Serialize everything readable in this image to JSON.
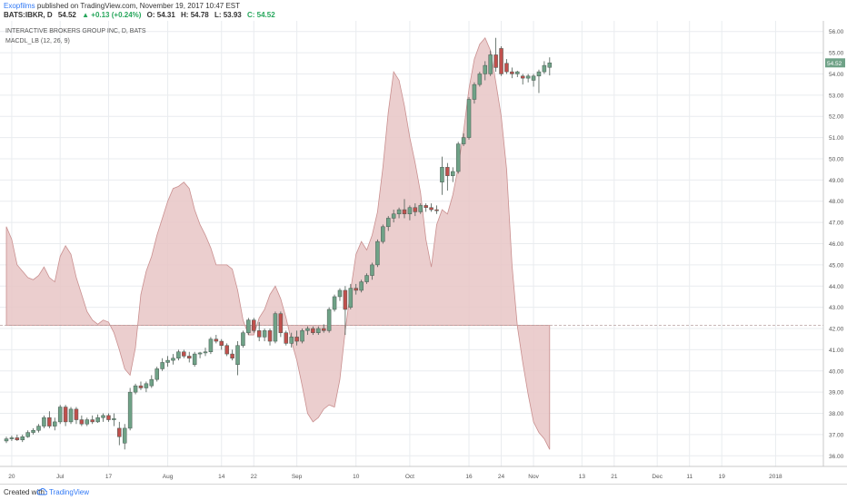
{
  "header": {
    "publisher": "Exopfilms",
    "published_text": "published on TradingView.com, November 19, 2017 10:47 EST",
    "symbol_line": "BATS:IBKR, D",
    "price": "54.52",
    "change": "▲ +0.13 (+0.24%)",
    "open": "O: 54.31",
    "high": "H: 54.78",
    "low": "L: 53.93",
    "close": "C: 54.52"
  },
  "footer": {
    "created_with": "Created with",
    "brand": "TradingView"
  },
  "colors": {
    "up": "#6fa287",
    "down": "#c0504d",
    "macd_fill": "#e7c6c6",
    "macd_line": "#c98f8f",
    "grid": "#e9ecef",
    "price_label_bg": "#6fa287"
  },
  "chart_data": {
    "type": "candlestick",
    "title": "INTERACTIVE BROKERS GROUP INC, D, BATS",
    "indicator_label": "MACDL_LB (12, 26, 9)",
    "last_price_label": "54.52",
    "ylim": [
      35.5,
      56.5
    ],
    "y_ticks": [
      "36.00",
      "37.00",
      "38.00",
      "39.00",
      "40.00",
      "41.00",
      "42.00",
      "43.00",
      "44.00",
      "45.00",
      "46.00",
      "47.00",
      "48.00",
      "49.00",
      "50.00",
      "51.00",
      "52.00",
      "53.00",
      "54.00",
      "55.00",
      "56.00"
    ],
    "x_ticks": [
      {
        "label": "20",
        "t": 1
      },
      {
        "label": "Jul",
        "t": 10
      },
      {
        "label": "17",
        "t": 19
      },
      {
        "label": "Aug",
        "t": 30
      },
      {
        "label": "14",
        "t": 40
      },
      {
        "label": "22",
        "t": 46
      },
      {
        "label": "Sep",
        "t": 54
      },
      {
        "label": "10",
        "t": 65
      },
      {
        "label": "Oct",
        "t": 75
      },
      {
        "label": "16",
        "t": 86
      },
      {
        "label": "24",
        "t": 92
      },
      {
        "label": "Nov",
        "t": 98
      },
      {
        "label": "13",
        "t": 107
      },
      {
        "label": "21",
        "t": 113
      },
      {
        "label": "Dec",
        "t": 121
      },
      {
        "label": "11",
        "t": 127
      },
      {
        "label": "19",
        "t": 133
      },
      {
        "label": "2018",
        "t": 143
      }
    ],
    "t_range": [
      0,
      148
    ],
    "candles": [
      {
        "t": 0,
        "o": 36.7,
        "h": 36.9,
        "l": 36.6,
        "c": 36.8
      },
      {
        "t": 1,
        "o": 36.8,
        "h": 36.95,
        "l": 36.7,
        "c": 36.85
      },
      {
        "t": 2,
        "o": 36.85,
        "h": 37.0,
        "l": 36.7,
        "c": 36.75
      },
      {
        "t": 3,
        "o": 36.75,
        "h": 37.0,
        "l": 36.65,
        "c": 36.9
      },
      {
        "t": 4,
        "o": 36.9,
        "h": 37.2,
        "l": 36.85,
        "c": 37.1
      },
      {
        "t": 5,
        "o": 37.1,
        "h": 37.3,
        "l": 37.0,
        "c": 37.2
      },
      {
        "t": 6,
        "o": 37.2,
        "h": 37.5,
        "l": 37.1,
        "c": 37.4
      },
      {
        "t": 7,
        "o": 37.4,
        "h": 37.9,
        "l": 37.3,
        "c": 37.8
      },
      {
        "t": 8,
        "o": 37.8,
        "h": 38.1,
        "l": 37.3,
        "c": 37.4
      },
      {
        "t": 9,
        "o": 37.4,
        "h": 37.8,
        "l": 37.2,
        "c": 37.6
      },
      {
        "t": 10,
        "o": 37.6,
        "h": 38.4,
        "l": 37.5,
        "c": 38.3
      },
      {
        "t": 11,
        "o": 38.3,
        "h": 38.4,
        "l": 37.4,
        "c": 37.6
      },
      {
        "t": 12,
        "o": 37.6,
        "h": 38.3,
        "l": 37.5,
        "c": 38.2
      },
      {
        "t": 13,
        "o": 38.2,
        "h": 38.3,
        "l": 37.5,
        "c": 37.7
      },
      {
        "t": 14,
        "o": 37.7,
        "h": 37.9,
        "l": 37.4,
        "c": 37.5
      },
      {
        "t": 15,
        "o": 37.5,
        "h": 37.8,
        "l": 37.4,
        "c": 37.7
      },
      {
        "t": 16,
        "o": 37.7,
        "h": 37.9,
        "l": 37.5,
        "c": 37.6
      },
      {
        "t": 17,
        "o": 37.6,
        "h": 37.95,
        "l": 37.55,
        "c": 37.8
      },
      {
        "t": 18,
        "o": 37.8,
        "h": 38.0,
        "l": 37.6,
        "c": 37.9
      },
      {
        "t": 19,
        "o": 37.9,
        "h": 38.0,
        "l": 37.6,
        "c": 37.7
      },
      {
        "t": 20,
        "o": 37.7,
        "h": 38.0,
        "l": 37.4,
        "c": 37.75
      },
      {
        "t": 21,
        "o": 37.3,
        "h": 37.6,
        "l": 36.5,
        "c": 36.9
      },
      {
        "t": 22,
        "o": 36.6,
        "h": 37.5,
        "l": 36.3,
        "c": 37.3
      },
      {
        "t": 23,
        "o": 37.3,
        "h": 39.2,
        "l": 37.2,
        "c": 39.0
      },
      {
        "t": 24,
        "o": 39.0,
        "h": 39.4,
        "l": 38.9,
        "c": 39.3
      },
      {
        "t": 25,
        "o": 39.3,
        "h": 39.5,
        "l": 39.1,
        "c": 39.2
      },
      {
        "t": 26,
        "o": 39.2,
        "h": 39.5,
        "l": 39.0,
        "c": 39.4
      },
      {
        "t": 27,
        "o": 39.3,
        "h": 39.8,
        "l": 39.2,
        "c": 39.6
      },
      {
        "t": 28,
        "o": 39.6,
        "h": 40.2,
        "l": 39.5,
        "c": 40.1
      },
      {
        "t": 29,
        "o": 40.1,
        "h": 40.6,
        "l": 40.0,
        "c": 40.4
      },
      {
        "t": 30,
        "o": 40.4,
        "h": 40.7,
        "l": 40.2,
        "c": 40.5
      },
      {
        "t": 31,
        "o": 40.5,
        "h": 40.8,
        "l": 40.3,
        "c": 40.6
      },
      {
        "t": 32,
        "o": 40.6,
        "h": 41.0,
        "l": 40.5,
        "c": 40.9
      },
      {
        "t": 33,
        "o": 40.9,
        "h": 41.0,
        "l": 40.6,
        "c": 40.7
      },
      {
        "t": 34,
        "o": 40.7,
        "h": 40.9,
        "l": 40.4,
        "c": 40.6
      },
      {
        "t": 35,
        "o": 40.3,
        "h": 40.9,
        "l": 40.2,
        "c": 40.8
      },
      {
        "t": 36,
        "o": 40.8,
        "h": 40.9,
        "l": 40.6,
        "c": 40.85
      },
      {
        "t": 37,
        "o": 40.85,
        "h": 41.1,
        "l": 40.7,
        "c": 40.9
      },
      {
        "t": 38,
        "o": 40.9,
        "h": 41.6,
        "l": 40.8,
        "c": 41.5
      },
      {
        "t": 39,
        "o": 41.5,
        "h": 41.7,
        "l": 41.3,
        "c": 41.4
      },
      {
        "t": 40,
        "o": 41.4,
        "h": 41.5,
        "l": 41.0,
        "c": 41.2
      },
      {
        "t": 41,
        "o": 41.2,
        "h": 41.3,
        "l": 40.7,
        "c": 40.8
      },
      {
        "t": 42,
        "o": 40.8,
        "h": 41.0,
        "l": 40.5,
        "c": 40.6
      },
      {
        "t": 43,
        "o": 40.3,
        "h": 41.4,
        "l": 39.8,
        "c": 41.2
      },
      {
        "t": 44,
        "o": 41.2,
        "h": 41.9,
        "l": 41.1,
        "c": 41.8
      },
      {
        "t": 45,
        "o": 41.8,
        "h": 42.5,
        "l": 41.7,
        "c": 42.4
      },
      {
        "t": 46,
        "o": 42.4,
        "h": 42.5,
        "l": 41.8,
        "c": 41.9
      },
      {
        "t": 47,
        "o": 41.9,
        "h": 42.3,
        "l": 41.4,
        "c": 41.6
      },
      {
        "t": 48,
        "o": 41.6,
        "h": 42.0,
        "l": 41.4,
        "c": 41.9
      },
      {
        "t": 49,
        "o": 41.9,
        "h": 42.0,
        "l": 41.2,
        "c": 41.4
      },
      {
        "t": 50,
        "o": 41.4,
        "h": 42.8,
        "l": 41.3,
        "c": 42.7
      },
      {
        "t": 51,
        "o": 42.7,
        "h": 42.8,
        "l": 41.6,
        "c": 41.8
      },
      {
        "t": 52,
        "o": 41.8,
        "h": 41.9,
        "l": 41.2,
        "c": 41.3
      },
      {
        "t": 53,
        "o": 41.3,
        "h": 41.8,
        "l": 41.1,
        "c": 41.6
      },
      {
        "t": 54,
        "o": 41.6,
        "h": 41.9,
        "l": 41.2,
        "c": 41.4
      },
      {
        "t": 55,
        "o": 41.4,
        "h": 42.0,
        "l": 41.3,
        "c": 41.9
      },
      {
        "t": 56,
        "o": 41.9,
        "h": 42.1,
        "l": 41.7,
        "c": 42.0
      },
      {
        "t": 57,
        "o": 42.0,
        "h": 42.1,
        "l": 41.7,
        "c": 41.8
      },
      {
        "t": 58,
        "o": 41.8,
        "h": 42.1,
        "l": 41.7,
        "c": 42.0
      },
      {
        "t": 59,
        "o": 42.0,
        "h": 42.2,
        "l": 41.8,
        "c": 41.9
      },
      {
        "t": 60,
        "o": 41.9,
        "h": 43.0,
        "l": 41.8,
        "c": 42.9
      },
      {
        "t": 61,
        "o": 42.9,
        "h": 43.6,
        "l": 42.8,
        "c": 43.5
      },
      {
        "t": 62,
        "o": 43.5,
        "h": 43.9,
        "l": 43.3,
        "c": 43.8
      },
      {
        "t": 63,
        "o": 43.8,
        "h": 44.0,
        "l": 41.7,
        "c": 42.9
      },
      {
        "t": 64,
        "o": 43.0,
        "h": 44.1,
        "l": 42.9,
        "c": 43.9
      },
      {
        "t": 65,
        "o": 43.9,
        "h": 44.1,
        "l": 43.6,
        "c": 43.8
      },
      {
        "t": 66,
        "o": 43.8,
        "h": 44.3,
        "l": 43.7,
        "c": 44.2
      },
      {
        "t": 67,
        "o": 44.2,
        "h": 44.6,
        "l": 44.1,
        "c": 44.5
      },
      {
        "t": 68,
        "o": 44.5,
        "h": 45.1,
        "l": 44.3,
        "c": 45.0
      },
      {
        "t": 69,
        "o": 45.0,
        "h": 46.2,
        "l": 44.9,
        "c": 46.1
      },
      {
        "t": 70,
        "o": 46.1,
        "h": 46.9,
        "l": 46.0,
        "c": 46.8
      },
      {
        "t": 71,
        "o": 46.8,
        "h": 47.3,
        "l": 46.6,
        "c": 47.2
      },
      {
        "t": 72,
        "o": 47.2,
        "h": 47.6,
        "l": 47.0,
        "c": 47.4
      },
      {
        "t": 73,
        "o": 47.4,
        "h": 47.7,
        "l": 47.2,
        "c": 47.6
      },
      {
        "t": 74,
        "o": 47.6,
        "h": 48.1,
        "l": 47.2,
        "c": 47.4
      },
      {
        "t": 75,
        "o": 47.4,
        "h": 47.8,
        "l": 47.1,
        "c": 47.7
      },
      {
        "t": 76,
        "o": 47.7,
        "h": 47.9,
        "l": 47.3,
        "c": 47.5
      },
      {
        "t": 77,
        "o": 47.5,
        "h": 47.9,
        "l": 47.4,
        "c": 47.8
      },
      {
        "t": 78,
        "o": 47.8,
        "h": 47.9,
        "l": 47.5,
        "c": 47.7
      },
      {
        "t": 79,
        "o": 47.7,
        "h": 47.9,
        "l": 47.5,
        "c": 47.6
      },
      {
        "t": 80,
        "o": 47.6,
        "h": 47.8,
        "l": 47.4,
        "c": 47.55
      },
      {
        "t": 81,
        "o": 48.9,
        "h": 50.1,
        "l": 48.3,
        "c": 49.6
      },
      {
        "t": 82,
        "o": 49.6,
        "h": 49.8,
        "l": 48.5,
        "c": 49.2
      },
      {
        "t": 83,
        "o": 49.2,
        "h": 49.6,
        "l": 48.9,
        "c": 49.4
      },
      {
        "t": 84,
        "o": 49.4,
        "h": 50.8,
        "l": 49.3,
        "c": 50.7
      },
      {
        "t": 85,
        "o": 50.7,
        "h": 51.2,
        "l": 50.6,
        "c": 51.0
      },
      {
        "t": 86,
        "o": 51.0,
        "h": 52.9,
        "l": 50.9,
        "c": 52.8
      },
      {
        "t": 87,
        "o": 52.8,
        "h": 53.6,
        "l": 52.6,
        "c": 53.5
      },
      {
        "t": 88,
        "o": 53.5,
        "h": 54.1,
        "l": 53.4,
        "c": 54.0
      },
      {
        "t": 89,
        "o": 54.0,
        "h": 54.6,
        "l": 53.7,
        "c": 54.4
      },
      {
        "t": 90,
        "o": 54.0,
        "h": 55.1,
        "l": 53.9,
        "c": 54.9
      },
      {
        "t": 91,
        "o": 54.9,
        "h": 55.7,
        "l": 54.1,
        "c": 54.3
      },
      {
        "t": 92,
        "o": 55.2,
        "h": 55.3,
        "l": 53.9,
        "c": 54.0
      },
      {
        "t": 93,
        "o": 54.5,
        "h": 54.7,
        "l": 54.0,
        "c": 54.1
      },
      {
        "t": 94,
        "o": 54.1,
        "h": 54.3,
        "l": 53.8,
        "c": 54.0
      },
      {
        "t": 95,
        "o": 54.0,
        "h": 54.15,
        "l": 53.85,
        "c": 54.1
      },
      {
        "t": 96,
        "o": 53.9,
        "h": 54.0,
        "l": 53.5,
        "c": 53.8
      },
      {
        "t": 97,
        "o": 53.8,
        "h": 54.0,
        "l": 53.6,
        "c": 53.9
      },
      {
        "t": 98,
        "o": 53.7,
        "h": 54.0,
        "l": 53.4,
        "c": 53.9
      },
      {
        "t": 99,
        "o": 53.9,
        "h": 54.2,
        "l": 53.1,
        "c": 54.1
      },
      {
        "t": 100,
        "o": 54.1,
        "h": 54.6,
        "l": 54.0,
        "c": 54.4
      },
      {
        "t": 101,
        "o": 54.31,
        "h": 54.78,
        "l": 53.93,
        "c": 54.52
      }
    ],
    "macd_zero_price": 42.15,
    "macd_area": [
      [
        0,
        46.8
      ],
      [
        1,
        46.2
      ],
      [
        2,
        45.0
      ],
      [
        3,
        44.7
      ],
      [
        4,
        44.4
      ],
      [
        5,
        44.3
      ],
      [
        6,
        44.5
      ],
      [
        7,
        44.9
      ],
      [
        8,
        44.4
      ],
      [
        9,
        44.2
      ],
      [
        10,
        45.4
      ],
      [
        11,
        45.9
      ],
      [
        12,
        45.5
      ],
      [
        13,
        44.4
      ],
      [
        14,
        43.6
      ],
      [
        15,
        42.8
      ],
      [
        16,
        42.4
      ],
      [
        17,
        42.2
      ],
      [
        18,
        42.4
      ],
      [
        19,
        42.3
      ],
      [
        20,
        41.8
      ],
      [
        21,
        41.0
      ],
      [
        22,
        40.1
      ],
      [
        23,
        39.8
      ],
      [
        24,
        41.1
      ],
      [
        25,
        43.6
      ],
      [
        26,
        44.7
      ],
      [
        27,
        45.4
      ],
      [
        28,
        46.4
      ],
      [
        29,
        47.2
      ],
      [
        30,
        48.0
      ],
      [
        31,
        48.6
      ],
      [
        32,
        48.7
      ],
      [
        33,
        48.9
      ],
      [
        34,
        48.6
      ],
      [
        35,
        47.6
      ],
      [
        36,
        46.9
      ],
      [
        37,
        46.4
      ],
      [
        38,
        45.8
      ],
      [
        39,
        45.0
      ],
      [
        40,
        45.0
      ],
      [
        41,
        45.0
      ],
      [
        42,
        44.8
      ],
      [
        43,
        43.8
      ],
      [
        44,
        42.4
      ],
      [
        45,
        41.7
      ],
      [
        46,
        41.7
      ],
      [
        47,
        42.5
      ],
      [
        48,
        42.9
      ],
      [
        49,
        43.6
      ],
      [
        50,
        44.0
      ],
      [
        51,
        43.4
      ],
      [
        52,
        42.5
      ],
      [
        53,
        41.4
      ],
      [
        54,
        40.5
      ],
      [
        55,
        39.3
      ],
      [
        56,
        38.0
      ],
      [
        57,
        37.6
      ],
      [
        58,
        37.8
      ],
      [
        59,
        38.2
      ],
      [
        60,
        38.4
      ],
      [
        61,
        38.3
      ],
      [
        62,
        39.6
      ],
      [
        63,
        41.9
      ],
      [
        64,
        43.8
      ],
      [
        65,
        45.5
      ],
      [
        66,
        46.1
      ],
      [
        67,
        45.7
      ],
      [
        68,
        46.4
      ],
      [
        69,
        47.5
      ],
      [
        70,
        49.6
      ],
      [
        71,
        52.2
      ],
      [
        72,
        54.1
      ],
      [
        73,
        53.7
      ],
      [
        74,
        52.5
      ],
      [
        75,
        51.0
      ],
      [
        76,
        49.8
      ],
      [
        77,
        48.4
      ],
      [
        78,
        46.2
      ],
      [
        79,
        44.9
      ],
      [
        80,
        46.9
      ],
      [
        81,
        47.6
      ],
      [
        82,
        47.4
      ],
      [
        83,
        48.3
      ],
      [
        84,
        49.6
      ],
      [
        85,
        51.3
      ],
      [
        86,
        53.3
      ],
      [
        87,
        54.7
      ],
      [
        88,
        55.4
      ],
      [
        89,
        55.7
      ],
      [
        90,
        55.1
      ],
      [
        91,
        53.6
      ],
      [
        92,
        52.0
      ],
      [
        93,
        49.5
      ],
      [
        94,
        45.0
      ],
      [
        95,
        42.1
      ],
      [
        96,
        40.4
      ],
      [
        97,
        38.9
      ],
      [
        98,
        37.6
      ],
      [
        99,
        37.1
      ],
      [
        100,
        36.8
      ],
      [
        101,
        36.3
      ]
    ],
    "grid": true
  }
}
